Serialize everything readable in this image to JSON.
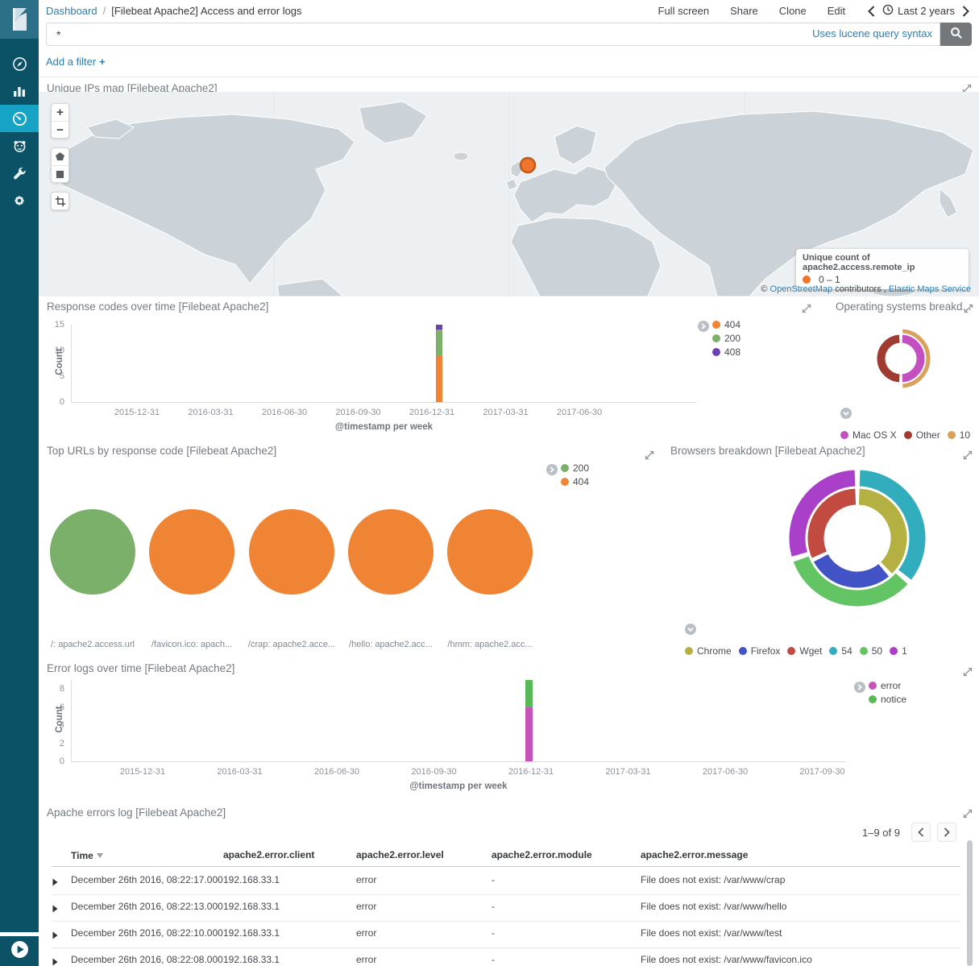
{
  "sidebar": {
    "items": [
      {
        "id": "discover",
        "icon": "compass-icon",
        "selected": false
      },
      {
        "id": "visualize",
        "icon": "bar-chart-icon",
        "selected": false
      },
      {
        "id": "dashboard",
        "icon": "gauge-icon",
        "selected": true
      },
      {
        "id": "timelion",
        "icon": "timelion-icon",
        "selected": false
      },
      {
        "id": "dev-tools",
        "icon": "wrench-icon",
        "selected": false
      },
      {
        "id": "management",
        "icon": "gear-icon",
        "selected": false
      }
    ]
  },
  "header": {
    "breadcrumb": {
      "root": "Dashboard",
      "separator": "/",
      "page": "[Filebeat Apache2] Access and error logs"
    },
    "actions": [
      "Full screen",
      "Share",
      "Clone",
      "Edit"
    ],
    "time": {
      "label": "Last 2 years"
    }
  },
  "search": {
    "value": "*",
    "syntax_hint": "Uses lucene query syntax"
  },
  "filter_bar": {
    "add_label": "Add a filter",
    "plus": "+"
  },
  "map_panel": {
    "title": "Unique IPs map [Filebeat Apache2]",
    "zoom_in": "+",
    "zoom_out": "−",
    "legend_title": "Unique count of apache2.access.remote_ip",
    "legend_range": "0 – 1",
    "legend_dot_color": "#F0742E",
    "attribution": {
      "copyright": "©",
      "link1": "OpenStreetMap",
      "middle": "contributors ,",
      "link2": "Elastic Maps Service"
    }
  },
  "response_panel": {
    "title": "Response codes over time [Filebeat Apache2]",
    "chart_data": {
      "type": "bar",
      "stacked": true,
      "xlabel": "@timestamp per week",
      "ylabel": "Count",
      "ylim": [
        0,
        15
      ],
      "y_ticks": [
        0,
        5,
        10,
        15
      ],
      "x_ticks": [
        "2015-12-31",
        "2016-03-31",
        "2016-06-30",
        "2016-09-30",
        "2016-12-31",
        "2017-03-31",
        "2017-06-30"
      ],
      "bar_week": "2016-12-26",
      "series": [
        {
          "name": "404",
          "color": "#EE8434",
          "value": 9
        },
        {
          "name": "200",
          "color": "#7AB06A",
          "value": 5
        },
        {
          "name": "408",
          "color": "#6B40B2",
          "value": 1
        }
      ],
      "legend_position": "right",
      "grid": false
    }
  },
  "os_panel": {
    "title": "Operating systems breakd...",
    "chart_data": {
      "type": "pie",
      "donut": true,
      "legend": [
        {
          "label": "Mac OS X",
          "color": "#C44FC0"
        },
        {
          "label": "Other",
          "color": "#A03B31"
        },
        {
          "label": "10",
          "color": "#D9A15B"
        }
      ],
      "rings": [
        {
          "name": "inner",
          "segments": [
            {
              "label": "Mac OS X",
              "color": "#C44FC0",
              "start": 3,
              "end": 177
            },
            {
              "label": "Other",
              "color": "#A03B31",
              "start": 183,
              "end": 357
            }
          ]
        },
        {
          "name": "outer",
          "segments": [
            {
              "label": "10",
              "color": "#D9A15B",
              "start": 3,
              "end": 177
            }
          ]
        }
      ],
      "legend_position": "bottom"
    }
  },
  "top_urls_panel": {
    "title": "Top URLs by response code [Filebeat Apache2]",
    "chart_data": {
      "type": "pie",
      "legend": [
        {
          "label": "200",
          "color": "#7AB06A"
        },
        {
          "label": "404",
          "color": "#EE8434"
        }
      ],
      "pies": [
        {
          "label": "/: apache2.access.url",
          "slice": "200",
          "color": "#7AB06A",
          "fraction": 1
        },
        {
          "label": "/favicon.ico: apach...",
          "slice": "404",
          "color": "#EE8434",
          "fraction": 1
        },
        {
          "label": "/crap: apache2.acce...",
          "slice": "404",
          "color": "#EE8434",
          "fraction": 1
        },
        {
          "label": "/hello: apache2.acc...",
          "slice": "404",
          "color": "#EE8434",
          "fraction": 1
        },
        {
          "label": "/hmm: apache2.acc...",
          "slice": "404",
          "color": "#EE8434",
          "fraction": 1
        }
      ],
      "legend_position": "right"
    }
  },
  "browsers_panel": {
    "title": "Browsers breakdown [Filebeat Apache2]",
    "chart_data": {
      "type": "pie",
      "donut": true,
      "legend": [
        {
          "label": "Chrome",
          "color": "#B4B142"
        },
        {
          "label": "Firefox",
          "color": "#4153C5"
        },
        {
          "label": "Wget",
          "color": "#C14B40"
        },
        {
          "label": "54",
          "color": "#32ADBD"
        },
        {
          "label": "50",
          "color": "#62C462"
        },
        {
          "label": "1",
          "color": "#AA3FC9"
        }
      ],
      "rings": [
        {
          "name": "inner",
          "segments": [
            {
              "label": "Chrome",
              "color": "#B4B142",
              "start": 2,
              "end": 136
            },
            {
              "label": "Firefox",
              "color": "#4153C5",
              "start": 140,
              "end": 242
            },
            {
              "label": "Wget",
              "color": "#C14B40",
              "start": 246,
              "end": 358
            }
          ]
        },
        {
          "name": "outer",
          "segments": [
            {
              "label": "54",
              "color": "#32ADBD",
              "start": 2,
              "end": 128
            },
            {
              "label": "50",
              "color": "#62C462",
              "start": 132,
              "end": 250
            },
            {
              "label": "1",
              "color": "#AA3FC9",
              "start": 254,
              "end": 358
            }
          ]
        }
      ],
      "legend_position": "bottom"
    }
  },
  "error_logs_panel": {
    "title": "Error logs over time [Filebeat Apache2]",
    "chart_data": {
      "type": "bar",
      "stacked": true,
      "xlabel": "@timestamp per week",
      "ylabel": "Count",
      "ylim": [
        0,
        9
      ],
      "y_ticks": [
        0,
        2,
        4,
        6,
        8
      ],
      "x_ticks": [
        "2015-12-31",
        "2016-03-31",
        "2016-06-30",
        "2016-09-30",
        "2016-12-31",
        "2017-03-31",
        "2017-06-30",
        "2017-09-30"
      ],
      "bar_week": "2016-12-26",
      "series": [
        {
          "name": "error",
          "color": "#C654B8",
          "value": 6
        },
        {
          "name": "notice",
          "color": "#57BA57",
          "value": 3
        }
      ],
      "legend_position": "right",
      "grid": false
    }
  },
  "errors_table_panel": {
    "title": "Apache errors log [Filebeat Apache2]",
    "pagination": "1–9 of 9",
    "columns": [
      "Time",
      "apache2.error.client",
      "apache2.error.level",
      "apache2.error.module",
      "apache2.error.message"
    ],
    "rows": [
      {
        "time": "December 26th 2016, 08:22:17.000",
        "client": "192.168.33.1",
        "level": "error",
        "module": "-",
        "message": "File does not exist: /var/www/crap"
      },
      {
        "time": "December 26th 2016, 08:22:13.000",
        "client": "192.168.33.1",
        "level": "error",
        "module": "-",
        "message": "File does not exist: /var/www/hello"
      },
      {
        "time": "December 26th 2016, 08:22:10.000",
        "client": "192.168.33.1",
        "level": "error",
        "module": "-",
        "message": "File does not exist: /var/www/test"
      },
      {
        "time": "December 26th 2016, 08:22:08.000",
        "client": "192.168.33.1",
        "level": "error",
        "module": "-",
        "message": "File does not exist: /var/www/favicon.ico"
      }
    ]
  }
}
